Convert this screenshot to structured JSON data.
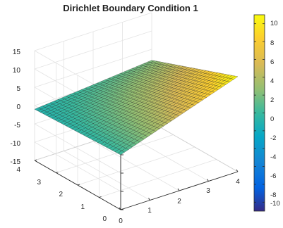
{
  "chart_data": {
    "type": "surface",
    "title": "Dirichlet Boundary Condition 1",
    "xlabel": "",
    "ylabel": "",
    "zlabel": "",
    "xlim": [
      0,
      4
    ],
    "ylim": [
      0,
      4
    ],
    "zlim": [
      -15,
      15
    ],
    "x_ticks": [
      "0",
      "1",
      "2",
      "3",
      "4"
    ],
    "y_ticks": [
      "0",
      "1",
      "2",
      "3",
      "4"
    ],
    "z_ticks": [
      "-15",
      "-10",
      "-5",
      "0",
      "5",
      "10",
      "15"
    ],
    "colorbar": {
      "range": [
        -11,
        11
      ],
      "ticks": [
        "10",
        "8",
        "6",
        "4",
        "2",
        "0",
        "-2",
        "-4",
        "-6",
        "-8",
        "-10"
      ],
      "colormap": "parula"
    },
    "grid": true,
    "surface_corner_values": {
      "x0_y0": 0,
      "x4_y0": 11,
      "x0_y4": -1,
      "x4_y4": 2
    }
  },
  "colors": {
    "axis": "#262626",
    "grid": "#e3e3e3",
    "edge": "#1a1a1a"
  }
}
